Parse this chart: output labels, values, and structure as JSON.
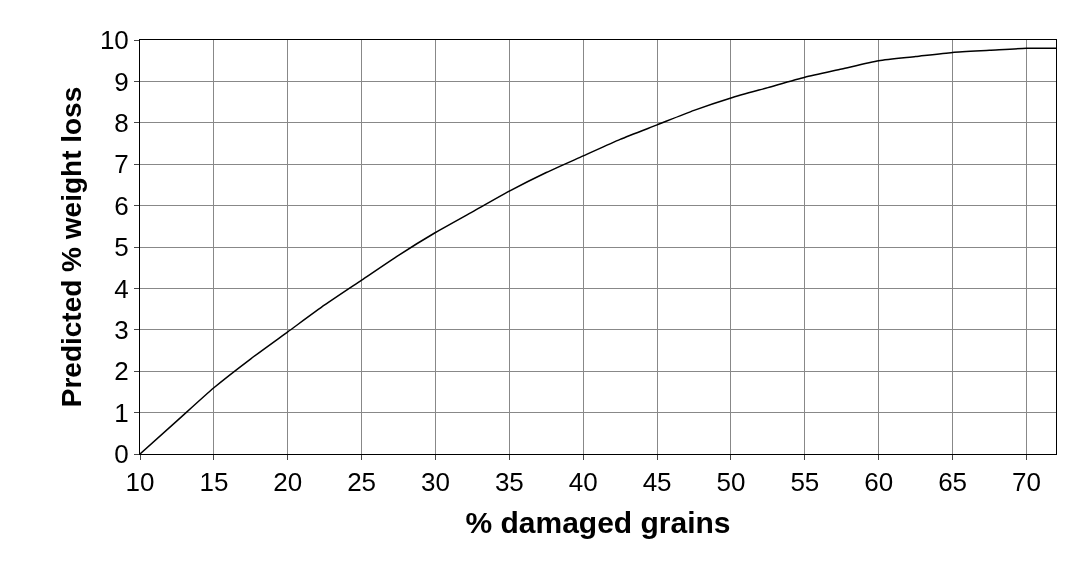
{
  "chart_data": {
    "type": "line",
    "xlabel": "% damaged grains",
    "ylabel": "Predicted % weight loss",
    "x": [
      10,
      12.5,
      15,
      17.5,
      20,
      22.5,
      25,
      27.5,
      30,
      32.5,
      35,
      37.5,
      40,
      42.5,
      45,
      47.5,
      50,
      52.5,
      55,
      57.5,
      60,
      62.5,
      65,
      67.5,
      70,
      72
    ],
    "series": [
      {
        "color": "#000000",
        "values": [
          0,
          0.8,
          1.6,
          2.3,
          2.95,
          3.6,
          4.2,
          4.8,
          5.35,
          5.85,
          6.35,
          6.8,
          7.2,
          7.6,
          7.95,
          8.3,
          8.6,
          8.85,
          9.1,
          9.3,
          9.5,
          9.6,
          9.7,
          9.75,
          9.8,
          9.8
        ]
      }
    ],
    "xlim": [
      10,
      72
    ],
    "xticks": [
      10,
      15,
      20,
      25,
      30,
      35,
      40,
      45,
      50,
      55,
      60,
      65,
      70
    ],
    "ylim": [
      0,
      10
    ],
    "yticks": [
      0,
      1,
      2,
      3,
      4,
      5,
      6,
      7,
      8,
      9,
      10
    ],
    "grid": true,
    "marker": "none",
    "line_style": "solid"
  }
}
